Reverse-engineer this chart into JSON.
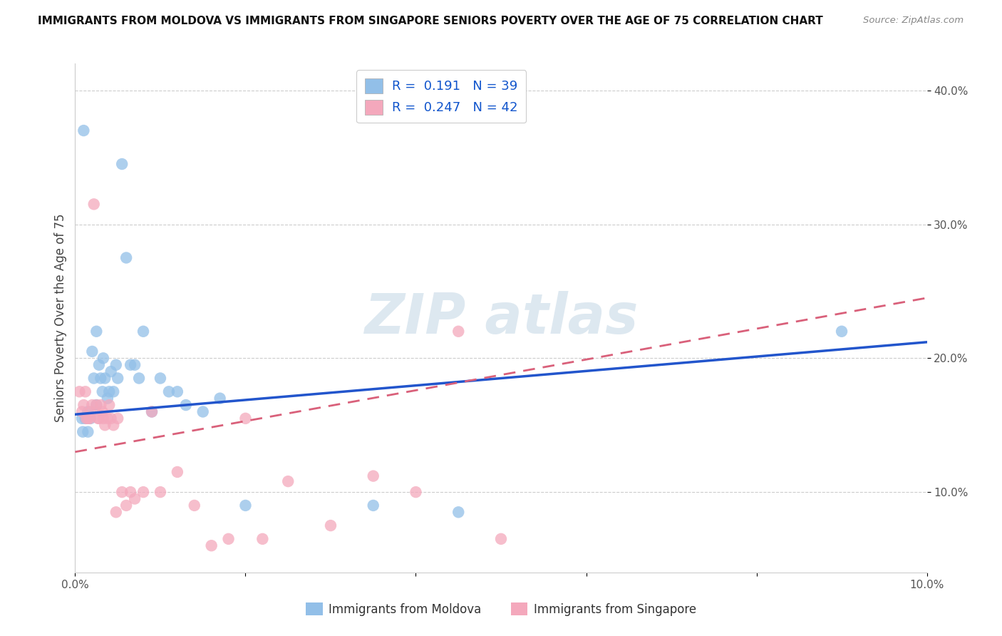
{
  "title": "IMMIGRANTS FROM MOLDOVA VS IMMIGRANTS FROM SINGAPORE SENIORS POVERTY OVER THE AGE OF 75 CORRELATION CHART",
  "source": "Source: ZipAtlas.com",
  "ylabel": "Seniors Poverty Over the Age of 75",
  "xlim": [
    0.0,
    0.1
  ],
  "ylim": [
    0.04,
    0.42
  ],
  "x_ticks": [
    0.0,
    0.02,
    0.04,
    0.06,
    0.08,
    0.1
  ],
  "x_tick_labels": [
    "0.0%",
    "",
    "",
    "",
    "",
    "10.0%"
  ],
  "y_ticks": [
    0.1,
    0.2,
    0.3,
    0.4
  ],
  "y_tick_labels": [
    "10.0%",
    "20.0%",
    "30.0%",
    "40.0%"
  ],
  "r_moldova": "0.191",
  "n_moldova": "39",
  "r_singapore": "0.247",
  "n_singapore": "42",
  "color_moldova": "#92bfe8",
  "color_singapore": "#f4a8bc",
  "line_color_moldova": "#2255cc",
  "line_color_singapore": "#d9607a",
  "watermark_text": "ZIPatlas",
  "moldova_x": [
    0.0008,
    0.0009,
    0.001,
    0.0012,
    0.0015,
    0.0015,
    0.0018,
    0.002,
    0.0022,
    0.0025,
    0.0025,
    0.0028,
    0.003,
    0.0032,
    0.0033,
    0.0035,
    0.0038,
    0.004,
    0.0042,
    0.0045,
    0.0048,
    0.005,
    0.0055,
    0.006,
    0.0065,
    0.007,
    0.0075,
    0.008,
    0.009,
    0.01,
    0.011,
    0.012,
    0.013,
    0.015,
    0.017,
    0.02,
    0.035,
    0.045,
    0.09
  ],
  "moldova_y": [
    0.155,
    0.145,
    0.37,
    0.155,
    0.145,
    0.16,
    0.155,
    0.205,
    0.185,
    0.22,
    0.165,
    0.195,
    0.185,
    0.175,
    0.2,
    0.185,
    0.17,
    0.175,
    0.19,
    0.175,
    0.195,
    0.185,
    0.345,
    0.275,
    0.195,
    0.195,
    0.185,
    0.22,
    0.16,
    0.185,
    0.175,
    0.175,
    0.165,
    0.16,
    0.17,
    0.09,
    0.09,
    0.085,
    0.22
  ],
  "singapore_x": [
    0.0005,
    0.0008,
    0.001,
    0.0012,
    0.0013,
    0.0015,
    0.0017,
    0.0018,
    0.002,
    0.0022,
    0.0025,
    0.0027,
    0.0028,
    0.003,
    0.0032,
    0.0033,
    0.0035,
    0.0038,
    0.004,
    0.0042,
    0.0045,
    0.0048,
    0.005,
    0.0055,
    0.006,
    0.0065,
    0.007,
    0.008,
    0.009,
    0.01,
    0.012,
    0.014,
    0.016,
    0.018,
    0.02,
    0.022,
    0.025,
    0.03,
    0.035,
    0.04,
    0.045,
    0.05
  ],
  "singapore_y": [
    0.175,
    0.16,
    0.165,
    0.175,
    0.155,
    0.155,
    0.155,
    0.16,
    0.165,
    0.315,
    0.165,
    0.155,
    0.155,
    0.165,
    0.16,
    0.155,
    0.15,
    0.155,
    0.165,
    0.155,
    0.15,
    0.085,
    0.155,
    0.1,
    0.09,
    0.1,
    0.095,
    0.1,
    0.16,
    0.1,
    0.115,
    0.09,
    0.06,
    0.065,
    0.155,
    0.065,
    0.108,
    0.075,
    0.112,
    0.1,
    0.22,
    0.065
  ]
}
